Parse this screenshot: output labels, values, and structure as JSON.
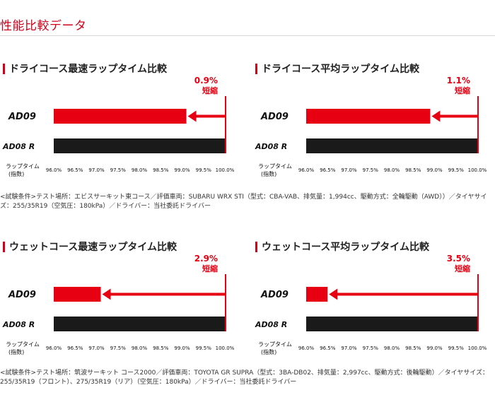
{
  "page": {
    "title": "性能比較データ",
    "conditions_dry": "<試験条件>テスト場所：エビスサーキット東コース／評価車両：SUBARU WRX STI（型式：CBA-VAB、排気量：1,994cc、駆動方式：全輪駆動（AWD））／タイヤサイズ：255/35R19（空気圧：180kPa）／ドライバー：当社委託ドライバー",
    "conditions_wet": "<試験条件>テスト場所：筑波サーキット コース2000／評価車両：TOYOTA GR SUPRA（型式：3BA-DB02、排気量：2,997cc、駆動方式：後輪駆動）／タイヤサイズ：255/35R19（フロント）、275/35R19（リア）（空気圧：180kPa）／ドライバー：当社委託ドライバー"
  },
  "colors": {
    "accent": "#d0021b",
    "bar_primary": "#e60012",
    "bar_secondary": "#1a1a1a",
    "text": "#222222"
  },
  "chart_data": [
    {
      "type": "bar",
      "orientation": "horizontal",
      "title": "ドライコース最速ラップタイム比較",
      "categories": [
        "AD09",
        "AD08 R"
      ],
      "values": [
        99.1,
        100.0
      ],
      "xlim": [
        96.0,
        100.0
      ],
      "ticks": [
        "96.0%",
        "96.5%",
        "97.0%",
        "97.5%",
        "98.0%",
        "98.5%",
        "99.0%",
        "99.5%",
        "100.0%"
      ],
      "xlabel": "ラップタイム",
      "xlabel_sub": "(指数)",
      "annotation": {
        "value": "0.9%",
        "label": "短縮"
      }
    },
    {
      "type": "bar",
      "orientation": "horizontal",
      "title": "ドライコース平均ラップタイム比較",
      "categories": [
        "AD09",
        "AD08 R"
      ],
      "values": [
        98.9,
        100.0
      ],
      "xlim": [
        96.0,
        100.0
      ],
      "ticks": [
        "96.0%",
        "96.5%",
        "97.0%",
        "97.5%",
        "98.0%",
        "98.5%",
        "99.0%",
        "99.5%",
        "100.0%"
      ],
      "xlabel": "ラップタイム",
      "xlabel_sub": "(指数)",
      "annotation": {
        "value": "1.1%",
        "label": "短縮"
      }
    },
    {
      "type": "bar",
      "orientation": "horizontal",
      "title": "ウェットコース最速ラップタイム比較",
      "categories": [
        "AD09",
        "AD08 R"
      ],
      "values": [
        97.1,
        100.0
      ],
      "xlim": [
        96.0,
        100.0
      ],
      "ticks": [
        "96.0%",
        "96.5%",
        "97.0%",
        "97.5%",
        "98.0%",
        "98.5%",
        "99.0%",
        "99.5%",
        "100.0%"
      ],
      "xlabel": "ラップタイム",
      "xlabel_sub": "(指数)",
      "annotation": {
        "value": "2.9%",
        "label": "短縮"
      }
    },
    {
      "type": "bar",
      "orientation": "horizontal",
      "title": "ウェットコース平均ラップタイム比較",
      "categories": [
        "AD09",
        "AD08 R"
      ],
      "values": [
        96.5,
        100.0
      ],
      "xlim": [
        96.0,
        100.0
      ],
      "ticks": [
        "96.0%",
        "96.5%",
        "97.0%",
        "97.5%",
        "98.0%",
        "98.5%",
        "99.0%",
        "99.5%",
        "100.0%"
      ],
      "xlabel": "ラップタイム",
      "xlabel_sub": "(指数)",
      "annotation": {
        "value": "3.5%",
        "label": "短縮"
      }
    }
  ]
}
